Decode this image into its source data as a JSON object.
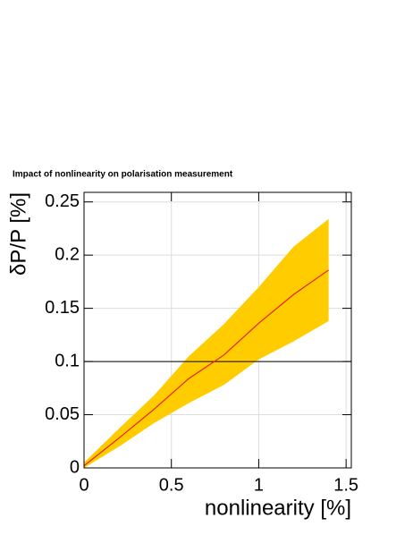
{
  "chart_data": {
    "type": "line",
    "title": "Impact of nonlinearity on polarisation measurement",
    "xlabel": "nonlinearity [%]",
    "ylabel": "δP/P [%]",
    "x": [
      0,
      0.2,
      0.4,
      0.6,
      0.8,
      1.0,
      1.2,
      1.4
    ],
    "series": [
      {
        "color": "#e8201a",
        "values": [
          0.002,
          0.028,
          0.055,
          0.084,
          0.106,
          0.136,
          0.163,
          0.186
        ]
      }
    ],
    "band": {
      "color": "#ffcc00",
      "upper": [
        0.005,
        0.037,
        0.068,
        0.105,
        0.135,
        0.17,
        0.208,
        0.234
      ],
      "lower": [
        0,
        0.02,
        0.042,
        0.061,
        0.078,
        0.102,
        0.119,
        0.138
      ]
    },
    "hline": {
      "value": 0.1,
      "color": "#000000"
    },
    "xlim": [
      0,
      1.53
    ],
    "ylim": [
      0,
      0.259
    ],
    "xticks": [
      0,
      0.5,
      1,
      1.5
    ],
    "yticks": [
      0,
      0.05,
      0.1,
      0.15,
      0.2,
      0.25
    ],
    "grid": true
  }
}
